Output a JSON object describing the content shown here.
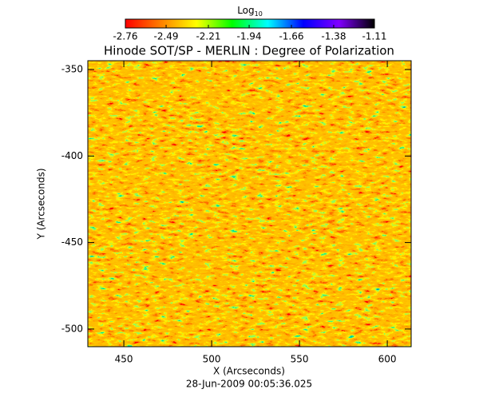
{
  "chart_data": {
    "type": "image",
    "title": "Hinode SOT/SP - MERLIN : Degree of Polarization",
    "xlabel": "X (Arcseconds)",
    "ylabel": "Y (Arcseconds)",
    "footer": "28-Jun-2009 00:05:36.025",
    "xlim": [
      429.5,
      613.6
    ],
    "ylim": [
      -510.2,
      -344.9
    ],
    "xticks": [
      450,
      500,
      550,
      600
    ],
    "yticks": [
      -350,
      -400,
      -450,
      -500
    ],
    "colorbar": {
      "label": "Log",
      "label_subscript": "10",
      "clim": [
        -2.76,
        -1.11
      ],
      "ticks": [
        -2.76,
        -2.49,
        -2.21,
        -1.94,
        -1.66,
        -1.38,
        -1.11
      ],
      "colormap": [
        "#ff0000",
        "#ff8000",
        "#ffff00",
        "#00ff00",
        "#00ffff",
        "#0000ff",
        "#8000ff",
        "#000000"
      ]
    }
  }
}
